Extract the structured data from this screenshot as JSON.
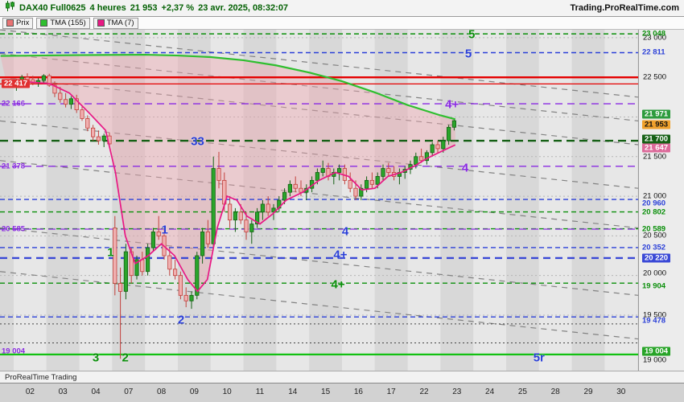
{
  "header": {
    "symbol": "DAX40 Full0625",
    "timeframe": "4 heures",
    "last_price": "21 953",
    "change": "+2,37 %",
    "datetime": "23 avr. 2025, 08:32:07",
    "site": "Trading.ProRealTime.com"
  },
  "legend": {
    "items": [
      {
        "label": "Prix",
        "color": "#e87272"
      },
      {
        "label": "TMA (155)",
        "color": "#2fbf2f"
      },
      {
        "label": "TMA (7)",
        "color": "#e81884"
      }
    ]
  },
  "footer": {
    "brand": "ProRealTime Trading"
  },
  "chart_data": {
    "type": "candlestick",
    "title": "DAX40 Full0625 4 heures",
    "price_range": [
      18800,
      23100
    ],
    "x_labels": [
      "02",
      "03",
      "04",
      "07",
      "08",
      "09",
      "10",
      "11",
      "14",
      "15",
      "16",
      "17",
      "22",
      "23",
      "24",
      "25",
      "28",
      "29",
      "30"
    ],
    "y_ticks": [
      {
        "v": 23000
      },
      {
        "v": 22500
      },
      {
        "v": 21500
      },
      {
        "v": 21000
      },
      {
        "v": 20500
      },
      {
        "v": 20000,
        "dy": -3
      },
      {
        "v": 19500
      },
      {
        "v": 19000,
        "dy": 7
      }
    ],
    "days": [
      {
        "d": "02",
        "c": [
          [
            22380,
            22480,
            22330,
            22450
          ],
          [
            22450,
            22530,
            22410,
            22500
          ],
          [
            22500,
            22550,
            22440,
            22470
          ],
          [
            22470,
            22520,
            22400,
            22430
          ],
          [
            22430,
            22490,
            22380,
            22460
          ],
          [
            22460,
            22540,
            22430,
            22520
          ]
        ]
      },
      {
        "d": "03",
        "c": [
          [
            22520,
            22545,
            22380,
            22400
          ],
          [
            22400,
            22450,
            22250,
            22300
          ],
          [
            22300,
            22380,
            22180,
            22220
          ],
          [
            22220,
            22300,
            22120,
            22160
          ],
          [
            22160,
            22260,
            22100,
            22230
          ],
          [
            22230,
            22280,
            22050,
            22090
          ]
        ]
      },
      {
        "d": "04",
        "c": [
          [
            22090,
            22140,
            21950,
            21980
          ],
          [
            21980,
            22020,
            21820,
            21860
          ],
          [
            21860,
            21900,
            21700,
            21750
          ],
          [
            21750,
            21830,
            21650,
            21700
          ],
          [
            21700,
            21790,
            21620,
            21760
          ],
          [
            21760,
            21800,
            21640,
            21660
          ]
        ]
      },
      {
        "d": "07",
        "c": [
          [
            20600,
            20750,
            19750,
            19900
          ],
          [
            19900,
            20100,
            18950,
            19800
          ],
          [
            19800,
            20400,
            19700,
            20300
          ],
          [
            20300,
            20350,
            19900,
            20000
          ],
          [
            20000,
            20250,
            19950,
            20200
          ],
          [
            20200,
            20300,
            20000,
            20050
          ]
        ]
      },
      {
        "d": "08",
        "c": [
          [
            20050,
            20400,
            20000,
            20350
          ],
          [
            20350,
            20600,
            20300,
            20550
          ],
          [
            20550,
            20750,
            20450,
            20500
          ],
          [
            20500,
            20580,
            20200,
            20250
          ],
          [
            20250,
            20350,
            20000,
            20080
          ],
          [
            20080,
            20200,
            19950,
            20000
          ]
        ]
      },
      {
        "d": "09",
        "c": [
          [
            20000,
            20050,
            19700,
            19750
          ],
          [
            19750,
            19850,
            19600,
            19680
          ],
          [
            19680,
            19800,
            19580,
            19750
          ],
          [
            19750,
            20300,
            19700,
            20250
          ],
          [
            20250,
            20600,
            20150,
            20550
          ],
          [
            20550,
            20700,
            20350,
            20400
          ]
        ]
      },
      {
        "d": "10",
        "c": [
          [
            20400,
            21500,
            20350,
            21350
          ],
          [
            21350,
            21560,
            21100,
            21200
          ],
          [
            21200,
            21300,
            20800,
            20900
          ],
          [
            20900,
            21000,
            20600,
            20700
          ],
          [
            20700,
            20850,
            20550,
            20800
          ],
          [
            20800,
            20900,
            20650,
            20700
          ]
        ]
      },
      {
        "d": "11",
        "c": [
          [
            20700,
            20800,
            20450,
            20550
          ],
          [
            20550,
            20700,
            20400,
            20650
          ],
          [
            20650,
            20850,
            20600,
            20800
          ],
          [
            20800,
            20950,
            20700,
            20900
          ],
          [
            20900,
            21000,
            20750,
            20800
          ],
          [
            20800,
            20900,
            20700,
            20850
          ]
        ]
      },
      {
        "d": "14",
        "c": [
          [
            20850,
            21000,
            20800,
            20950
          ],
          [
            20950,
            21100,
            20900,
            21050
          ],
          [
            21050,
            21200,
            21000,
            21150
          ],
          [
            21150,
            21250,
            21050,
            21100
          ],
          [
            21100,
            21200,
            21000,
            21050
          ],
          [
            21050,
            21150,
            20950,
            21100
          ]
        ]
      },
      {
        "d": "15",
        "c": [
          [
            21100,
            21250,
            21050,
            21200
          ],
          [
            21200,
            21350,
            21150,
            21300
          ],
          [
            21300,
            21450,
            21250,
            21350
          ],
          [
            21350,
            21420,
            21200,
            21250
          ],
          [
            21250,
            21350,
            21150,
            21300
          ],
          [
            21300,
            21400,
            21200,
            21350
          ]
        ]
      },
      {
        "d": "16",
        "c": [
          [
            21350,
            21400,
            21150,
            21200
          ],
          [
            21200,
            21300,
            21050,
            21100
          ],
          [
            21100,
            21200,
            20950,
            21000
          ],
          [
            21000,
            21150,
            20950,
            21100
          ],
          [
            21100,
            21250,
            21050,
            21200
          ],
          [
            21200,
            21300,
            21100,
            21150
          ]
        ]
      },
      {
        "d": "17",
        "c": [
          [
            21150,
            21300,
            21100,
            21250
          ],
          [
            21250,
            21400,
            21200,
            21350
          ],
          [
            21350,
            21420,
            21250,
            21300
          ],
          [
            21300,
            21380,
            21200,
            21250
          ],
          [
            21250,
            21350,
            21150,
            21300
          ],
          [
            21300,
            21380,
            21220,
            21340
          ]
        ]
      },
      {
        "d": "22",
        "c": [
          [
            21340,
            21450,
            21280,
            21400
          ],
          [
            21400,
            21550,
            21350,
            21500
          ],
          [
            21500,
            21600,
            21420,
            21450
          ],
          [
            21450,
            21580,
            21400,
            21550
          ],
          [
            21550,
            21680,
            21500,
            21650
          ],
          [
            21650,
            21700,
            21550,
            21600
          ]
        ]
      },
      {
        "d": "23",
        "c": [
          [
            21600,
            21750,
            21550,
            21700
          ],
          [
            21700,
            21900,
            21650,
            21870
          ],
          [
            21870,
            21980,
            21830,
            21953
          ]
        ]
      },
      {
        "d": "24",
        "c": []
      },
      {
        "d": "25",
        "c": []
      },
      {
        "d": "28",
        "c": []
      },
      {
        "d": "29",
        "c": []
      },
      {
        "d": "30",
        "c": []
      }
    ],
    "tma155": [
      [
        -0.4,
        22770
      ],
      [
        2,
        22780
      ],
      [
        4,
        22785
      ],
      [
        5,
        22775
      ],
      [
        6,
        22755
      ],
      [
        7,
        22715
      ],
      [
        8,
        22650
      ],
      [
        9,
        22560
      ],
      [
        10,
        22450
      ],
      [
        11,
        22310
      ],
      [
        12,
        22150
      ],
      [
        13,
        22020
      ],
      [
        13.45,
        21971
      ]
    ],
    "tma7": [
      [
        -0.2,
        22380
      ],
      [
        0.5,
        22440
      ],
      [
        1.1,
        22420
      ],
      [
        1.7,
        22300
      ],
      [
        2.3,
        22050
      ],
      [
        2.8,
        21830
      ],
      [
        3.1,
        21300
      ],
      [
        3.4,
        20500
      ],
      [
        3.7,
        20150
      ],
      [
        4.1,
        20250
      ],
      [
        4.5,
        20400
      ],
      [
        4.9,
        20250
      ],
      [
        5.3,
        19950
      ],
      [
        5.6,
        19800
      ],
      [
        5.9,
        19950
      ],
      [
        6.2,
        20600
      ],
      [
        6.5,
        21000
      ],
      [
        6.8,
        20950
      ],
      [
        7.1,
        20750
      ],
      [
        7.5,
        20650
      ],
      [
        7.9,
        20780
      ],
      [
        8.3,
        20950
      ],
      [
        8.8,
        21050
      ],
      [
        9.3,
        21200
      ],
      [
        9.8,
        21300
      ],
      [
        10.2,
        21250
      ],
      [
        10.6,
        21080
      ],
      [
        11,
        21100
      ],
      [
        11.4,
        21250
      ],
      [
        11.8,
        21300
      ],
      [
        12.2,
        21380
      ],
      [
        12.6,
        21480
      ],
      [
        13,
        21560
      ],
      [
        13.45,
        21647
      ]
    ],
    "h_lines": [
      {
        "p": 23048,
        "color": "#0a8f0a",
        "dash": "6 4",
        "w": 1.4
      },
      {
        "p": 22811,
        "color": "#2a3fd8",
        "dash": "6 4",
        "w": 1.4
      },
      {
        "p": 22500,
        "color": "#e50000",
        "dash": "",
        "w": 2.4
      },
      {
        "p": 22417,
        "color": "#e50000",
        "dash": "",
        "w": 1.2
      },
      {
        "p": 22166,
        "color": "#8a2be2",
        "dash": "9 6",
        "w": 1.4
      },
      {
        "p": 21700,
        "color": "#156015",
        "dash": "10 6",
        "w": 2.4
      },
      {
        "p": 21378,
        "color": "#8a2be2",
        "dash": "9 6",
        "w": 1.4
      },
      {
        "p": 20960,
        "color": "#2a3fd8",
        "dash": "6 4",
        "w": 1.4
      },
      {
        "p": 20802,
        "color": "#0a8f0a",
        "dash": "6 4",
        "w": 1.4
      },
      {
        "p": 20589,
        "color": "#0a8f0a",
        "dash": "6 4",
        "w": 1.4
      },
      {
        "p": 20585,
        "color": "#8a2be2",
        "dash": "9 6",
        "w": 1.2
      },
      {
        "p": 20352,
        "color": "#2a3fd8",
        "dash": "6 4",
        "w": 1.4
      },
      {
        "p": 20220,
        "color": "#3a49d6",
        "dash": "9 6",
        "w": 2.4
      },
      {
        "p": 19904,
        "color": "#0a8f0a",
        "dash": "6 4",
        "w": 1.4
      },
      {
        "p": 19478,
        "color": "#2a3fd8",
        "dash": "6 4",
        "w": 1.4
      },
      {
        "p": 19390,
        "color": "#444444",
        "dash": "2 3",
        "w": 1
      },
      {
        "p": 19150,
        "color": "#444444",
        "dash": "2 3",
        "w": 1
      },
      {
        "p": 19004,
        "color": "#13c113",
        "dash": "",
        "w": 2.2
      }
    ],
    "trend_lines": [
      {
        "p1": 23100,
        "p2": 22250
      },
      {
        "p1": 22800,
        "p2": 21950
      },
      {
        "p1": 22500,
        "p2": 21650
      },
      {
        "p1": 21950,
        "p2": 21100
      },
      {
        "p1": 21450,
        "p2": 20600
      },
      {
        "p1": 20600,
        "p2": 19750
      },
      {
        "p1": 20050,
        "p2": 19200
      }
    ],
    "right_labels": [
      {
        "text": "23 048",
        "p": 23048,
        "fg": "#0a8f0a"
      },
      {
        "text": "22 811",
        "p": 22811,
        "fg": "#2a3fd8"
      },
      {
        "text": "21 971",
        "p": 21971,
        "bg": "#2d9b3d",
        "fg": "#ffffff",
        "dy": -6
      },
      {
        "text": "21 953",
        "p": 21953,
        "bg": "#f0a12c",
        "fg": "#111111",
        "dy": 5
      },
      {
        "text": "21 700",
        "p": 21700,
        "bg": "#156015",
        "fg": "#ffffff",
        "dy": -2
      },
      {
        "text": "21 647",
        "p": 21647,
        "bg": "#dc6a9a",
        "fg": "#ffffff",
        "dy": 4
      },
      {
        "text": "20 960",
        "p": 20960,
        "fg": "#2a3fd8",
        "dy": 5
      },
      {
        "text": "20 802",
        "p": 20802,
        "fg": "#0a8f0a"
      },
      {
        "text": "20 589",
        "p": 20589,
        "fg": "#0a8f0a"
      },
      {
        "text": "20 352",
        "p": 20352,
        "fg": "#2a3fd8"
      },
      {
        "text": "20 220",
        "p": 20220,
        "bg": "#3a49d6",
        "fg": "#ffffff"
      },
      {
        "text": "19 904",
        "p": 19904,
        "fg": "#0a8f0a",
        "dy": 4
      },
      {
        "text": "19 478",
        "p": 19478,
        "fg": "#2a3fd8",
        "dy": 5
      },
      {
        "text": "19 004",
        "p": 19004,
        "bg": "#27a427",
        "fg": "#ffffff",
        "dy": -4
      }
    ],
    "left_labels": [
      {
        "text": "22 417",
        "p": 22417,
        "bg": "#e03030",
        "fg": "#ffffff"
      },
      {
        "text": "22 166",
        "p": 22166,
        "fg": "#8a2be2"
      },
      {
        "text": "21 378",
        "p": 21378,
        "fg": "#8a2be2"
      },
      {
        "text": "20 585",
        "p": 20585,
        "fg": "#8a2be2"
      },
      {
        "text": "19 004",
        "p": 19004,
        "fg": "#8a2be2",
        "dy": -4
      }
    ],
    "wave_labels": [
      {
        "t": "5",
        "c": "#0a8f0a",
        "d": 13.95,
        "p": 23035
      },
      {
        "t": "5",
        "c": "#2a3fd8",
        "d": 13.85,
        "p": 22800
      },
      {
        "t": "4+",
        "c": "#8a2be2",
        "d": 13.35,
        "p": 22160
      },
      {
        "t": "33",
        "c": "#2a3fd8",
        "d": 5.6,
        "p": 21690
      },
      {
        "t": "4",
        "c": "#8a2be2",
        "d": 13.75,
        "p": 21360
      },
      {
        "t": "1",
        "c": "#2a3fd8",
        "d": 4.6,
        "p": 20570
      },
      {
        "t": "4",
        "c": "#2a3fd8",
        "d": 10.1,
        "p": 20550
      },
      {
        "t": "1",
        "c": "#0a8f0a",
        "d": 2.95,
        "p": 20290
      },
      {
        "t": "4+",
        "c": "#2a3fd8",
        "d": 9.95,
        "p": 20260
      },
      {
        "t": "4+",
        "c": "#0a8f0a",
        "d": 9.88,
        "p": 19885
      },
      {
        "t": "2",
        "c": "#2a3fd8",
        "d": 5.1,
        "p": 19440
      },
      {
        "t": "3",
        "c": "#0a8f0a",
        "d": 2.5,
        "p": 18960
      },
      {
        "t": "2",
        "c": "#0a8f0a",
        "d": 3.4,
        "p": 18960
      },
      {
        "t": "5r",
        "c": "#2a3fd8",
        "d": 16,
        "p": 18960
      }
    ],
    "colors": {
      "up": "#2aa52a",
      "up_stroke": "#156015",
      "down": "#f0b0b0",
      "down_stroke": "#c2403c",
      "tma155": "#2fbf2f",
      "tma7": "#e81884",
      "fill": "rgba(238,165,175,0.42)",
      "band_light": "#e7e7e7",
      "band_dark": "#d8d8d8",
      "grid": "#b5b5b5",
      "trend": "#828282"
    }
  }
}
